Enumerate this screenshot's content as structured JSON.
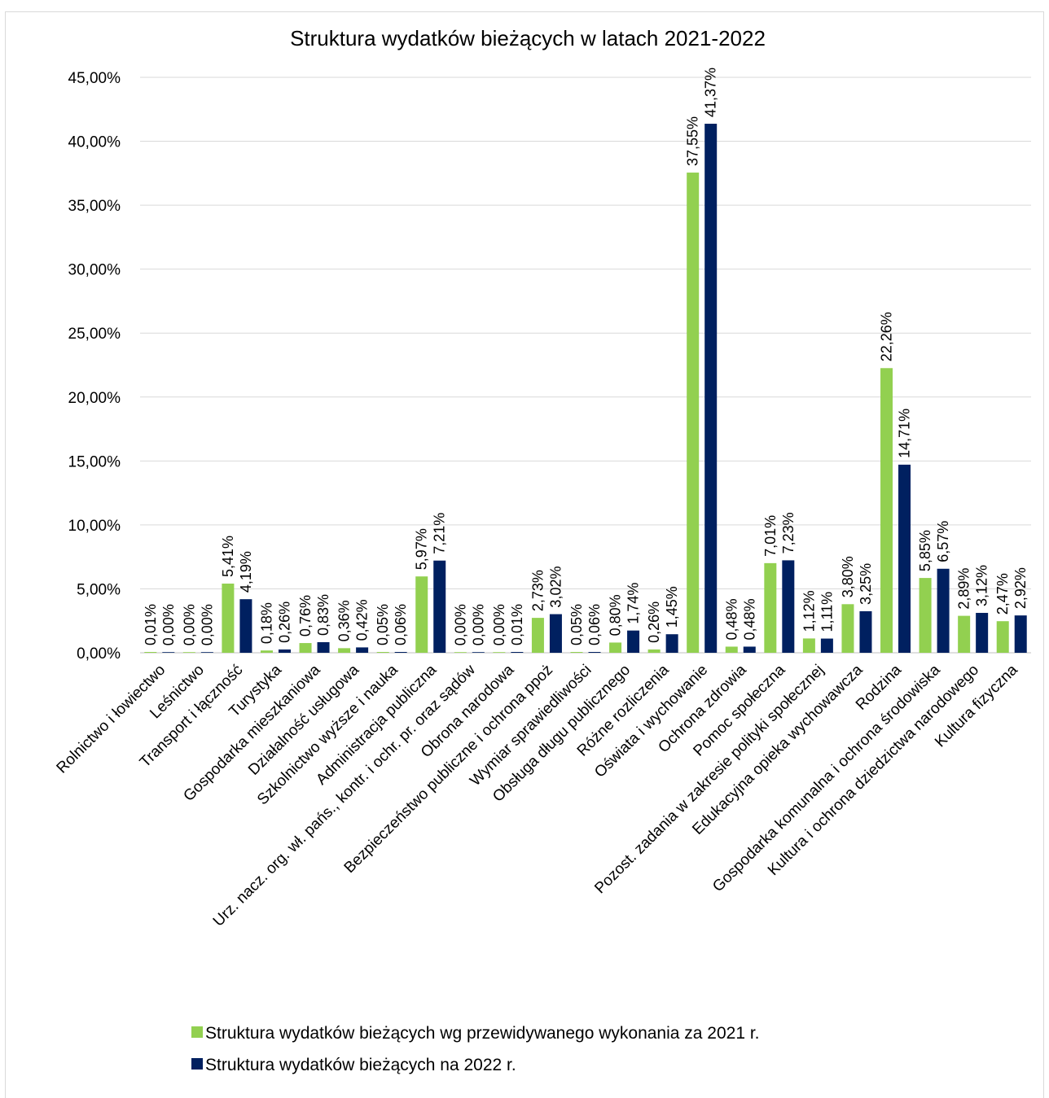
{
  "chart_data": {
    "type": "bar",
    "title": "Struktura wydatków bieżących w latach 2021-2022",
    "xlabel": "",
    "ylabel": "",
    "ylim": [
      0,
      45
    ],
    "y_ticks": [
      "0,00%",
      "5,00%",
      "10,00%",
      "15,00%",
      "20,00%",
      "25,00%",
      "30,00%",
      "35,00%",
      "40,00%",
      "45,00%"
    ],
    "grid": true,
    "legend_position": "bottom",
    "categories": [
      "Rolnictwo i łowiectwo",
      "Leśnictwo",
      "Transport i łączność",
      "Turystyka",
      "Gospodarka mieszkaniowa",
      "Działalność usługowa",
      "Szkolnictwo wyższe i nauka",
      "Administracja publiczna",
      "Urz. nacz. org. wł. pańs., kontr. i ochr. pr. oraz sądów",
      "Obrona narodowa",
      "Bezpieczeństwo publiczne i ochrona ppoż",
      "Wymiar sprawiedliwości",
      "Obsługa długu publicznego",
      "Różne rozliczenia",
      "Oświata i wychowanie",
      "Ochrona zdrowia",
      "Pomoc społeczna",
      "Pozost. zadania w zakresie polityki społecznej",
      "Edukacyjna opieka wychowawcza",
      "Rodzina",
      "Gospodarka komunalna i ochrona środowiska",
      "Kultura i ochrona dziedzictwa narodowego",
      "Kultura fizyczna"
    ],
    "series": [
      {
        "name": "Struktura wydatków bieżących wg przewidywanego wykonania za 2021 r.",
        "color": "#92d050",
        "values": [
          0.01,
          0.0,
          5.41,
          0.18,
          0.76,
          0.36,
          0.05,
          5.97,
          0.0,
          0.0,
          2.73,
          0.05,
          0.8,
          0.26,
          37.55,
          0.48,
          7.01,
          1.12,
          3.8,
          22.26,
          5.85,
          2.89,
          2.47
        ],
        "labels": [
          "0,01%",
          "0,00%",
          "5,41%",
          "0,18%",
          "0,76%",
          "0,36%",
          "0,05%",
          "5,97%",
          "0,00%",
          "0,00%",
          "2,73%",
          "0,05%",
          "0,80%",
          "0,26%",
          "37,55%",
          "0,48%",
          "7,01%",
          "1,12%",
          "3,80%",
          "22,26%",
          "5,85%",
          "2,89%",
          "2,47%"
        ]
      },
      {
        "name": "Struktura wydatków bieżących na 2022 r.",
        "color": "#002060",
        "values": [
          0.0,
          0.0,
          4.19,
          0.26,
          0.83,
          0.42,
          0.06,
          7.21,
          0.0,
          0.01,
          3.02,
          0.06,
          1.74,
          1.45,
          41.37,
          0.48,
          7.23,
          1.11,
          3.25,
          14.71,
          6.57,
          3.12,
          2.92
        ],
        "labels": [
          "0,00%",
          "0,00%",
          "4,19%",
          "0,26%",
          "0,83%",
          "0,42%",
          "0,06%",
          "7,21%",
          "0,00%",
          "0,01%",
          "3,02%",
          "0,06%",
          "1,74%",
          "1,45%",
          "41,37%",
          "0,48%",
          "7,23%",
          "1,11%",
          "3,25%",
          "14,71%",
          "6,57%",
          "3,12%",
          "2,92%"
        ]
      }
    ]
  }
}
